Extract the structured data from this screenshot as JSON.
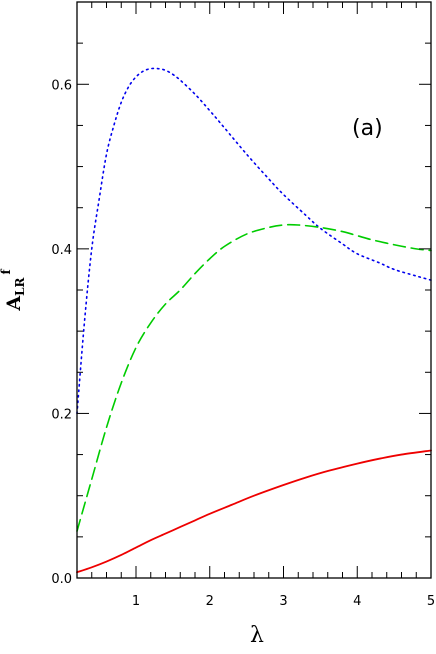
{
  "chart_data": {
    "type": "line",
    "title": "",
    "xlabel": "λ",
    "ylabel": {
      "main": "A",
      "sub": "LR",
      "sup": "f"
    },
    "annotation": "(a)",
    "xlim": [
      0.2,
      5.0
    ],
    "ylim": [
      0.0,
      0.7
    ],
    "x_ticks": [
      1,
      2,
      3,
      4,
      5
    ],
    "x_tick_labels": [
      "1",
      "2",
      "3",
      "4",
      "5"
    ],
    "y_ticks": [
      0.0,
      0.2,
      0.4,
      0.6
    ],
    "y_tick_labels": [
      "0.0",
      "0.2",
      "0.4",
      "0.6"
    ],
    "grid": false,
    "series": [
      {
        "color": "#0000ee",
        "style": "dotted",
        "x": [
          0.2,
          0.3,
          0.4,
          0.5,
          0.6,
          0.7,
          0.8,
          0.9,
          1.0,
          1.1,
          1.2,
          1.3,
          1.4,
          1.5,
          1.6,
          1.8,
          2.0,
          2.2,
          2.5,
          2.8,
          3.0,
          3.3,
          3.5,
          3.8,
          4.0,
          4.3,
          4.5,
          4.8,
          5.0
        ],
        "y": [
          0.2,
          0.31,
          0.4,
          0.46,
          0.515,
          0.55,
          0.578,
          0.597,
          0.609,
          0.616,
          0.619,
          0.619,
          0.617,
          0.612,
          0.605,
          0.588,
          0.568,
          0.547,
          0.515,
          0.485,
          0.466,
          0.441,
          0.425,
          0.406,
          0.394,
          0.383,
          0.375,
          0.367,
          0.362
        ]
      },
      {
        "color": "#00cc00",
        "style": "dashed",
        "x": [
          0.2,
          0.4,
          0.6,
          0.8,
          1.0,
          1.2,
          1.4,
          1.6,
          1.8,
          2.0,
          2.2,
          2.5,
          2.8,
          3.0,
          3.2,
          3.5,
          3.8,
          4.0,
          4.2,
          4.5,
          4.8,
          5.0
        ],
        "y": [
          0.057,
          0.12,
          0.183,
          0.237,
          0.28,
          0.31,
          0.333,
          0.35,
          0.37,
          0.388,
          0.403,
          0.418,
          0.426,
          0.429,
          0.429,
          0.426,
          0.421,
          0.416,
          0.411,
          0.405,
          0.4,
          0.398
        ]
      },
      {
        "color": "#ee0000",
        "style": "solid",
        "x": [
          0.2,
          0.4,
          0.6,
          0.8,
          1.0,
          1.2,
          1.4,
          1.6,
          1.8,
          2.0,
          2.3,
          2.6,
          3.0,
          3.3,
          3.6,
          4.0,
          4.3,
          4.6,
          5.0
        ],
        "y": [
          0.007,
          0.013,
          0.02,
          0.028,
          0.037,
          0.046,
          0.054,
          0.062,
          0.07,
          0.078,
          0.089,
          0.1,
          0.113,
          0.122,
          0.13,
          0.139,
          0.145,
          0.15,
          0.155
        ]
      }
    ]
  }
}
